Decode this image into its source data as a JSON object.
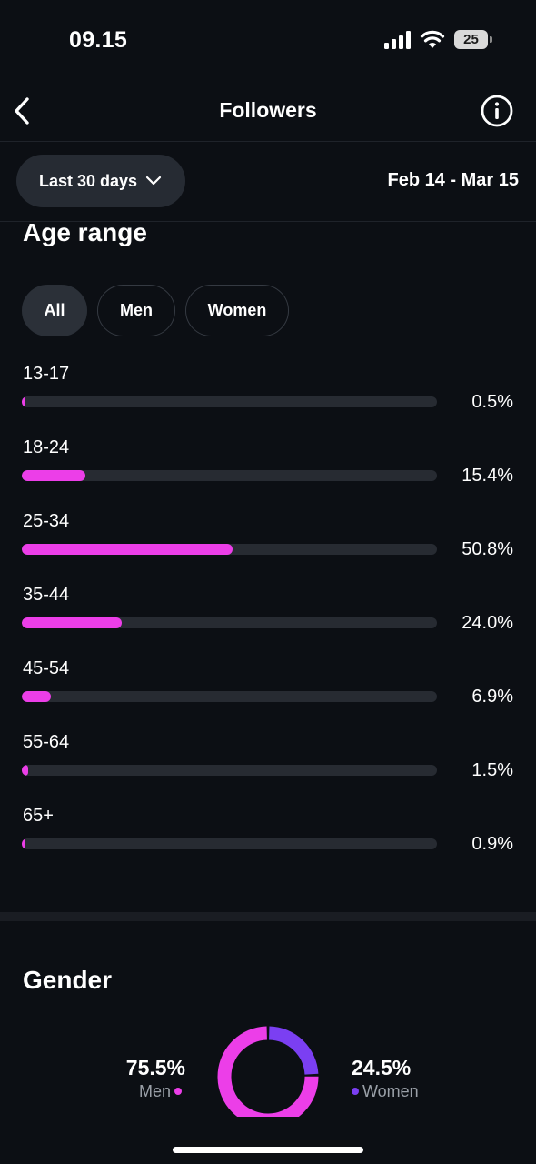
{
  "status_bar": {
    "time": "09.15",
    "battery": "25"
  },
  "header": {
    "title": "Followers",
    "back_icon": "chevron-left-icon",
    "info_icon": "info-icon"
  },
  "filters": {
    "range_label": "Last 30 days",
    "date_range": "Feb 14 - Mar 15"
  },
  "colors": {
    "accent": "#ec3ee8",
    "women": "#7b3ff2",
    "background": "#0c0f14",
    "track": "#272b32"
  },
  "age_range": {
    "title": "Age range",
    "segments": [
      {
        "label": "All",
        "active": true
      },
      {
        "label": "Men",
        "active": false
      },
      {
        "label": "Women",
        "active": false
      }
    ],
    "rows": [
      {
        "label": "13-17",
        "value": "0.5%",
        "percent": 0.5
      },
      {
        "label": "18-24",
        "value": "15.4%",
        "percent": 15.4
      },
      {
        "label": "25-34",
        "value": "50.8%",
        "percent": 50.8
      },
      {
        "label": "35-44",
        "value": "24.0%",
        "percent": 24.0
      },
      {
        "label": "45-54",
        "value": "6.9%",
        "percent": 6.9
      },
      {
        "label": "55-64",
        "value": "1.5%",
        "percent": 1.5
      },
      {
        "label": "65+",
        "value": "0.9%",
        "percent": 0.9
      }
    ]
  },
  "gender": {
    "title": "Gender",
    "men": {
      "value": "75.5%",
      "label": "Men",
      "percent": 75.5
    },
    "women": {
      "value": "24.5%",
      "label": "Women",
      "percent": 24.5
    }
  }
}
